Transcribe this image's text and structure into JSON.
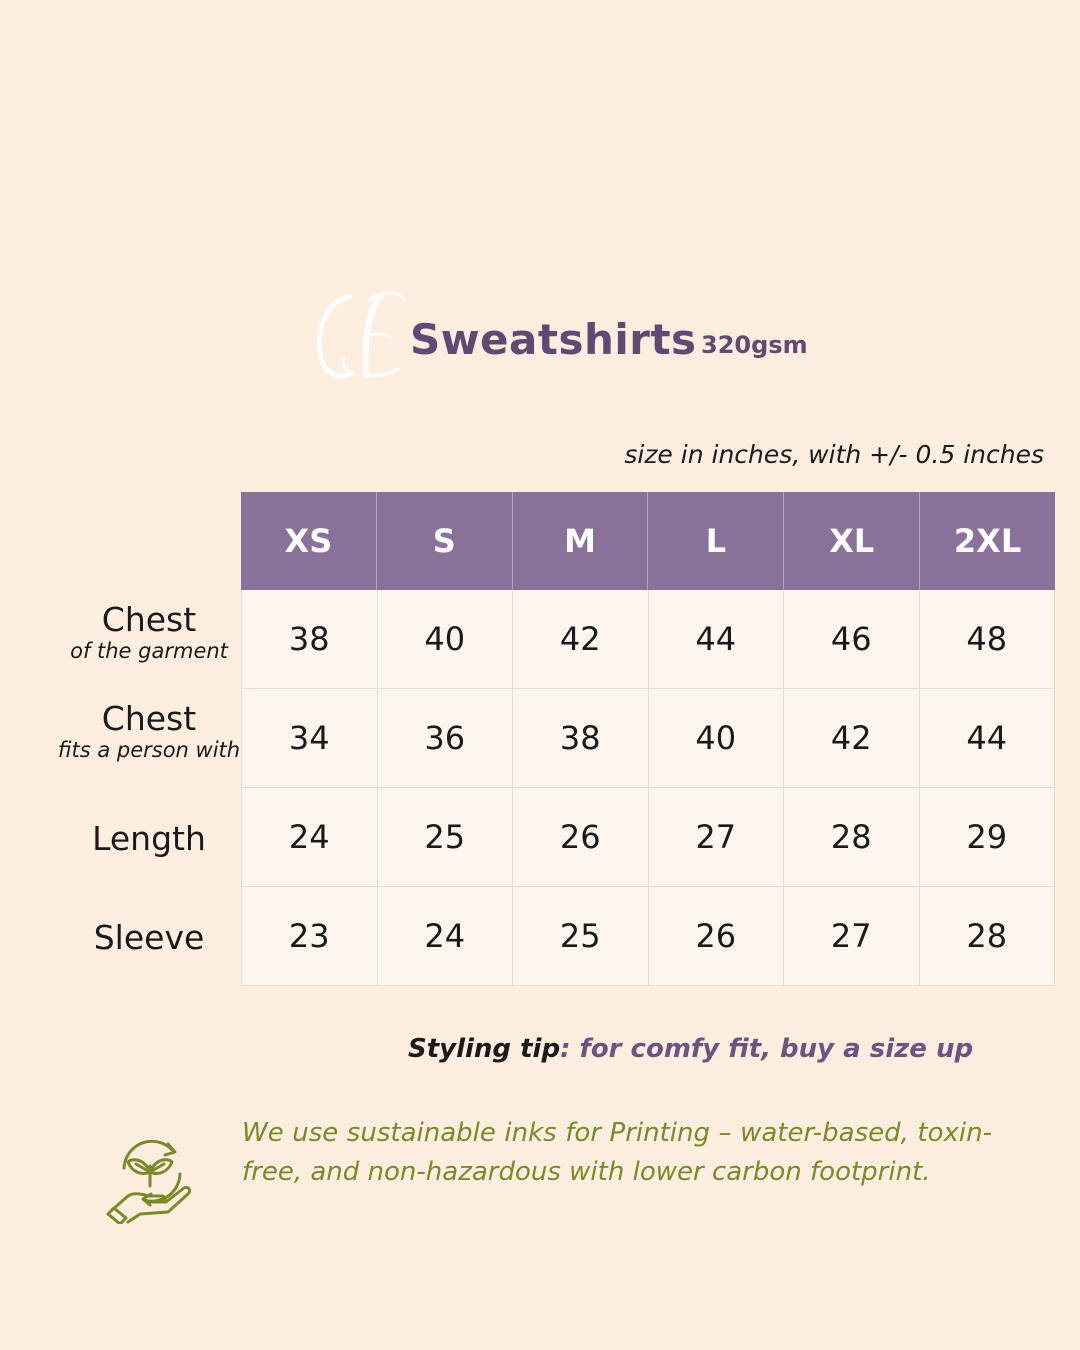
{
  "header": {
    "logo_letters": "CE",
    "title": "Sweatshirts",
    "gsm": "320gsm"
  },
  "note": "size in inches, with +/- 0.5 inches",
  "table": {
    "sizes": [
      "XS",
      "S",
      "M",
      "L",
      "XL",
      "2XL"
    ],
    "rows": [
      {
        "label": "Chest",
        "sublabel": "of the garment",
        "values": [
          "38",
          "40",
          "42",
          "44",
          "46",
          "48"
        ]
      },
      {
        "label": "Chest",
        "sublabel": "fits a person with",
        "values": [
          "34",
          "36",
          "38",
          "40",
          "42",
          "44"
        ]
      },
      {
        "label": "Length",
        "sublabel": "",
        "values": [
          "24",
          "25",
          "26",
          "27",
          "28",
          "29"
        ]
      },
      {
        "label": "Sleeve",
        "sublabel": "",
        "values": [
          "23",
          "24",
          "25",
          "26",
          "27",
          "28"
        ]
      }
    ]
  },
  "tip": {
    "label": "Styling tip",
    "text": ": for comfy fit, buy a size up"
  },
  "eco": {
    "icon": "hand-leaf-recycle-icon",
    "text": "We use sustainable inks for Printing – water-based, toxin-free, and non-hazardous with lower carbon footprint."
  },
  "colors": {
    "background": "#fdeee0",
    "header_purple": "#8a7199",
    "title_purple": "#5e4a72",
    "eco_green": "#7a8a2a"
  }
}
